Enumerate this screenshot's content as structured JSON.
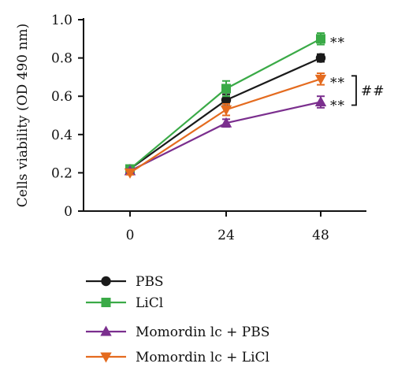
{
  "chart_data": {
    "type": "line",
    "title": "",
    "xlabel": "",
    "ylabel": "Cells viability (OD 490 nm)",
    "x": [
      0,
      24,
      48
    ],
    "x_tick_labels": [
      "0",
      "24",
      "48"
    ],
    "ylim": [
      0,
      1.0
    ],
    "y_ticks": [
      0,
      0.2,
      0.4,
      0.6,
      0.8,
      1.0
    ],
    "y_tick_labels": [
      "0",
      "0.2",
      "0.4",
      "0.6",
      "0.8",
      "1.0"
    ],
    "grid": false,
    "legend_position": "bottom",
    "series": [
      {
        "name": "PBS",
        "values": [
          0.22,
          0.58,
          0.8
        ],
        "errors": [
          0.01,
          0.03,
          0.02
        ],
        "color": "#1a1a1a",
        "marker": "circle"
      },
      {
        "name": "LiCl",
        "values": [
          0.22,
          0.64,
          0.9
        ],
        "errors": [
          0.01,
          0.04,
          0.03
        ],
        "color": "#3aaa47",
        "marker": "square"
      },
      {
        "name": "Momordin lc + PBS",
        "values": [
          0.21,
          0.46,
          0.57
        ],
        "errors": [
          0.01,
          0.02,
          0.03
        ],
        "color": "#7b2f8e",
        "marker": "triangle-up"
      },
      {
        "name": "Momordin lc + LiCl",
        "values": [
          0.2,
          0.53,
          0.69
        ],
        "errors": [
          0.01,
          0.03,
          0.03
        ],
        "color": "#e46b1f",
        "marker": "triangle-down"
      }
    ],
    "annotations": {
      "series_significance": [
        "**",
        "**",
        "**"
      ],
      "bracket_significance": "##"
    }
  }
}
